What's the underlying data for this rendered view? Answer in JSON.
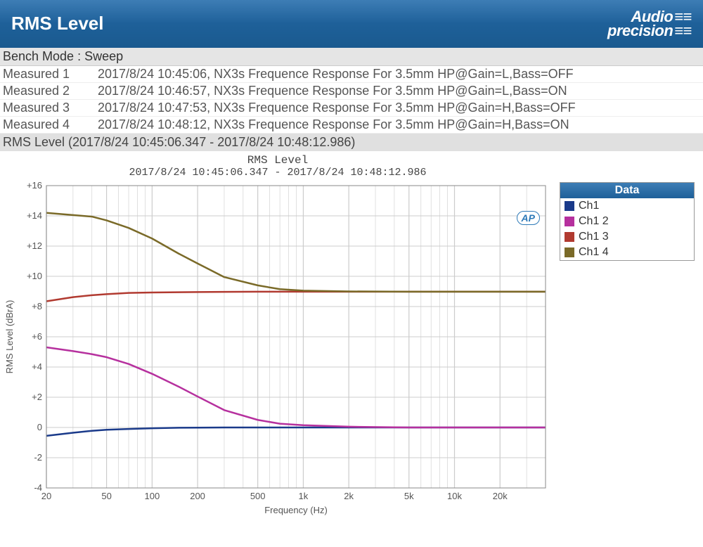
{
  "header": {
    "title": "RMS Level",
    "brand_top": "Audio",
    "brand_bot": "precision"
  },
  "mode_line": "Bench Mode : Sweep",
  "measurements": [
    {
      "label": "Measured 1",
      "text": "2017/8/24 10:45:06, NX3s Frequence Response For 3.5mm HP@Gain=L,Bass=OFF"
    },
    {
      "label": "Measured 2",
      "text": "2017/8/24 10:46:57, NX3s Frequence Response For 3.5mm HP@Gain=L,Bass=ON"
    },
    {
      "label": "Measured 3",
      "text": "2017/8/24 10:47:53, NX3s Frequence Response For 3.5mm HP@Gain=H,Bass=OFF"
    },
    {
      "label": "Measured 4",
      "text": "2017/8/24 10:48:12, NX3s Frequence Response For 3.5mm HP@Gain=H,Bass=ON"
    }
  ],
  "summary_line": "RMS Level (2017/8/24 10:45:06.347 - 2017/8/24 10:48:12.986)",
  "chart": {
    "title": "RMS Level",
    "subtitle": "2017/8/24 10:45:06.347 - 2017/8/24 10:48:12.986",
    "xlabel": "Frequency (Hz)",
    "ylabel": "RMS Level (dBrA)",
    "x_scale": "log",
    "xlim": [
      20,
      40000
    ],
    "ylim": [
      -4,
      16
    ],
    "ytick_step": 2,
    "x_ticks": [
      20,
      50,
      100,
      200,
      500,
      1000,
      2000,
      5000,
      10000,
      20000
    ],
    "x_tick_labels": [
      "20",
      "50",
      "100",
      "200",
      "500",
      "1k",
      "2k",
      "5k",
      "10k",
      "20k"
    ],
    "background_color": "#ffffff",
    "grid_color": "#cccccc",
    "axis_color": "#888888",
    "label_fontsize": 13,
    "tick_fontsize": 13,
    "line_width": 2.5,
    "series_x": [
      20,
      30,
      40,
      50,
      70,
      100,
      150,
      200,
      300,
      500,
      700,
      1000,
      2000,
      5000,
      10000,
      20000,
      40000
    ],
    "series": [
      {
        "name": "Ch1",
        "color": "#1a3a8a",
        "y": [
          -0.55,
          -0.35,
          -0.22,
          -0.15,
          -0.1,
          -0.05,
          -0.02,
          -0.01,
          0.0,
          0.0,
          0.0,
          0.0,
          0.0,
          0.0,
          0.0,
          0.0,
          0.0
        ]
      },
      {
        "name": "Ch1 2",
        "color": "#b6309e",
        "y": [
          5.3,
          5.05,
          4.85,
          4.65,
          4.2,
          3.55,
          2.7,
          2.05,
          1.15,
          0.5,
          0.25,
          0.15,
          0.05,
          0.0,
          0.0,
          0.0,
          0.0
        ]
      },
      {
        "name": "Ch1 3",
        "color": "#b13a30",
        "y": [
          8.35,
          8.62,
          8.75,
          8.82,
          8.9,
          8.93,
          8.95,
          8.96,
          8.97,
          8.98,
          8.98,
          8.98,
          8.98,
          8.98,
          8.98,
          8.98,
          8.98
        ]
      },
      {
        "name": "Ch1 4",
        "color": "#7a6a28",
        "y": [
          14.2,
          14.05,
          13.95,
          13.7,
          13.2,
          12.5,
          11.5,
          10.85,
          9.95,
          9.4,
          9.15,
          9.05,
          9.0,
          8.98,
          8.98,
          8.98,
          8.98
        ]
      }
    ],
    "legend_title": "Data",
    "ap_badge": "AP"
  }
}
